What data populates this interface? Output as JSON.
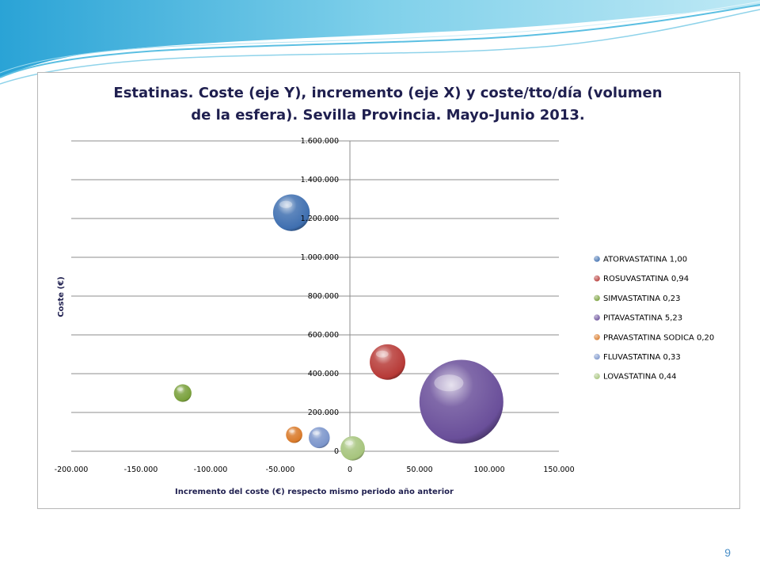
{
  "slide": {
    "page_number": "9"
  },
  "chart_data": {
    "type": "bubble",
    "title_line1": "Estatinas. Coste (eje Y), incremento (eje X) y coste/tto/día (volumen",
    "title_line2": "de la esfera). Sevilla Provincia. Mayo-Junio 2013.",
    "xlabel": "Incremento del coste (€) respecto mismo periodo año anterior",
    "ylabel": "Coste (€)",
    "xlim": [
      -200000,
      150000
    ],
    "ylim": [
      0,
      1600000
    ],
    "x_ticks": [
      -200000,
      -150000,
      -100000,
      -50000,
      0,
      50000,
      100000,
      150000
    ],
    "x_tick_labels": [
      "-200.000",
      "-150.000",
      "-100.000",
      "-50.000",
      "0",
      "50.000",
      "100.000",
      "150.000"
    ],
    "y_ticks": [
      0,
      200000,
      400000,
      600000,
      800000,
      1000000,
      1200000,
      1400000,
      1600000
    ],
    "y_tick_labels": [
      "0",
      "200.000",
      "400.000",
      "600.000",
      "800.000",
      "1.000.000",
      "1.200.000",
      "1.400.000",
      "1.600.000"
    ],
    "grid": "horizontal",
    "legend_position": "right",
    "series": [
      {
        "name": "ATORVASTATINA 1,00",
        "x": -42000,
        "y": 1230000,
        "size": 1.0,
        "color": "#3f6fb0"
      },
      {
        "name": "ROSUVASTATINA 0,94",
        "x": 27000,
        "y": 460000,
        "size": 0.94,
        "color": "#b73a37"
      },
      {
        "name": "SIMVASTATINA 0,23",
        "x": -120000,
        "y": 300000,
        "size": 0.23,
        "color": "#79a03b"
      },
      {
        "name": "PITAVASTATINA 5,23",
        "x": 80000,
        "y": 255000,
        "size": 5.23,
        "color": "#6a4f9a"
      },
      {
        "name": "PRAVASTATINA SODICA 0,20",
        "x": -40000,
        "y": 85000,
        "size": 0.2,
        "color": "#d97a2a"
      },
      {
        "name": "FLUVASTATINA 0,33",
        "x": -22000,
        "y": 70000,
        "size": 0.33,
        "color": "#7b95cb"
      },
      {
        "name": "LOVASTATINA 0,44",
        "x": 2000,
        "y": 15000,
        "size": 0.44,
        "color": "#a6c47c"
      }
    ]
  }
}
